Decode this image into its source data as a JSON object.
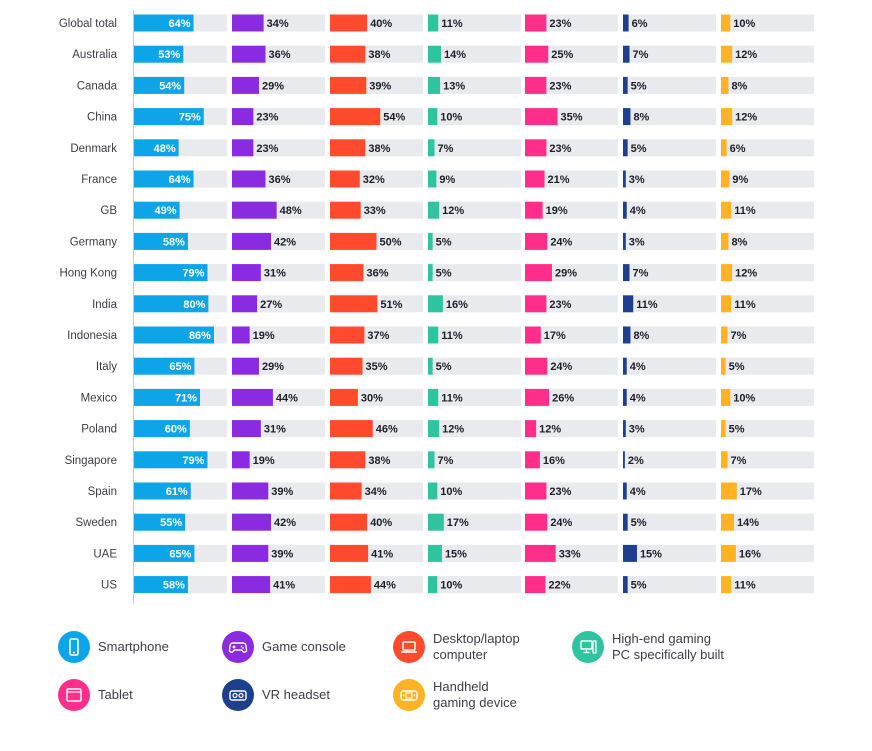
{
  "chart_data": {
    "type": "bar",
    "orientation": "horizontal",
    "layout": "small-multiples",
    "max_value": 100,
    "categories": [
      "Global total",
      "Australia",
      "Canada",
      "China",
      "Denmark",
      "France",
      "GB",
      "Germany",
      "Hong Kong",
      "India",
      "Indonesia",
      "Italy",
      "Mexico",
      "Poland",
      "Singapore",
      "Spain",
      "Sweden",
      "UAE",
      "US"
    ],
    "series": [
      {
        "name": "Smartphone",
        "color": "#0ea5e8",
        "label_inside": true,
        "values": [
          64,
          53,
          54,
          75,
          48,
          64,
          49,
          58,
          79,
          80,
          86,
          65,
          71,
          60,
          79,
          61,
          55,
          65,
          58
        ]
      },
      {
        "name": "Game console",
        "color": "#8a2be2",
        "label_inside": false,
        "values": [
          34,
          36,
          29,
          23,
          23,
          36,
          48,
          42,
          31,
          27,
          19,
          29,
          44,
          31,
          19,
          39,
          42,
          39,
          41
        ]
      },
      {
        "name": "Desktop/laptop computer",
        "color": "#ff4a2e",
        "label_inside": false,
        "values": [
          40,
          38,
          39,
          54,
          38,
          32,
          33,
          50,
          36,
          51,
          37,
          35,
          30,
          46,
          38,
          34,
          40,
          41,
          44
        ]
      },
      {
        "name": "High-end gaming PC specifically built",
        "color": "#2ec4a0",
        "label_inside": false,
        "values": [
          11,
          14,
          13,
          10,
          7,
          9,
          12,
          5,
          5,
          16,
          11,
          5,
          11,
          12,
          7,
          10,
          17,
          15,
          10
        ]
      },
      {
        "name": "Tablet",
        "color": "#ff2e8a",
        "label_inside": false,
        "values": [
          23,
          25,
          23,
          35,
          23,
          21,
          19,
          24,
          29,
          23,
          17,
          24,
          26,
          12,
          16,
          23,
          24,
          33,
          22
        ]
      },
      {
        "name": "VR headset",
        "color": "#1e3f8e",
        "label_inside": false,
        "values": [
          6,
          7,
          5,
          8,
          5,
          3,
          4,
          3,
          7,
          11,
          8,
          4,
          4,
          3,
          2,
          4,
          5,
          15,
          5
        ]
      },
      {
        "name": "Handheld gaming device",
        "color": "#ffb322",
        "label_inside": false,
        "values": [
          10,
          12,
          8,
          12,
          6,
          9,
          11,
          8,
          12,
          11,
          7,
          5,
          10,
          5,
          7,
          17,
          14,
          16,
          11
        ]
      }
    ],
    "value_suffix": "%"
  },
  "legend": {
    "items": [
      {
        "label": "Smartphone",
        "color": "#0ea5e8",
        "icon": "smartphone-icon"
      },
      {
        "label": "Game console",
        "color": "#8a2be2",
        "icon": "gamepad-icon"
      },
      {
        "label": "Desktop/laptop\ncomputer",
        "color": "#ff4a2e",
        "icon": "laptop-icon"
      },
      {
        "label": "High-end gaming\nPC specifically built",
        "color": "#2ec4a0",
        "icon": "gaming-pc-icon"
      },
      {
        "label": "Tablet",
        "color": "#ff2e8a",
        "icon": "tablet-icon"
      },
      {
        "label": "VR headset",
        "color": "#1e3f8e",
        "icon": "vr-headset-icon"
      },
      {
        "label": "Handheld\ngaming device",
        "color": "#ffb322",
        "icon": "handheld-console-icon"
      }
    ]
  },
  "colors": {
    "track": "#e9eaee",
    "axis": "#c8c8cc"
  }
}
